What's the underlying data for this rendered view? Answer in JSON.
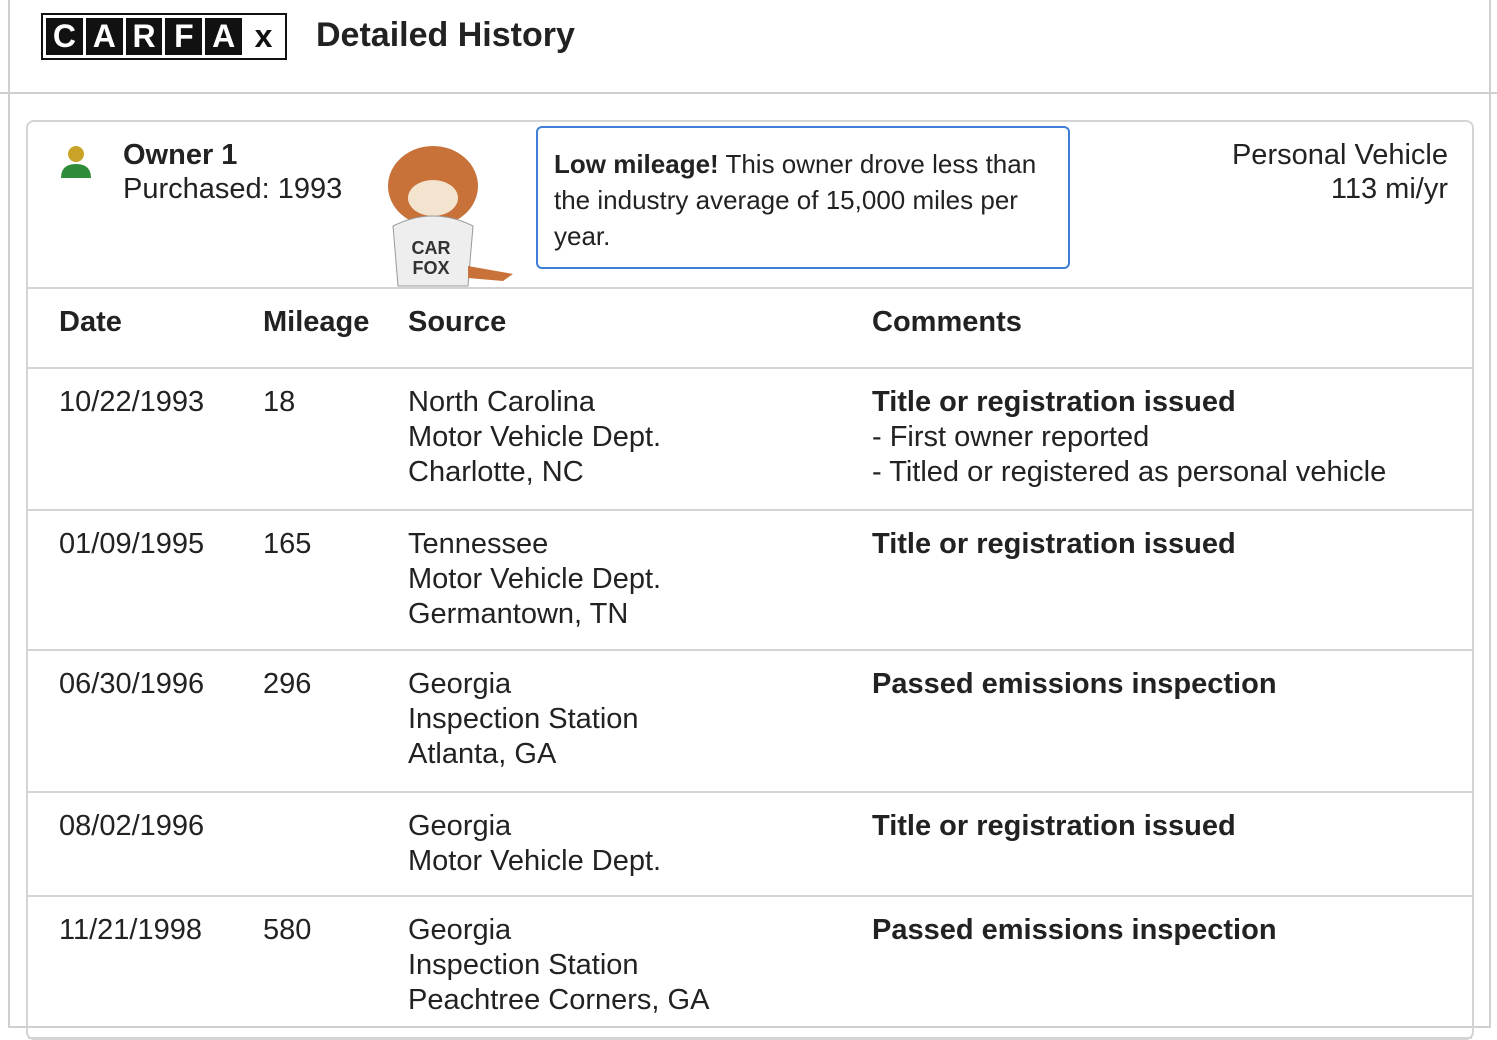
{
  "header": {
    "logo_letters": [
      "C",
      "A",
      "R",
      "F",
      "A",
      "x"
    ],
    "title": "Detailed History"
  },
  "owner": {
    "name": "Owner 1",
    "purchased": "Purchased: 1993",
    "mascot_shirt": [
      "CAR",
      "FOX"
    ],
    "callout": {
      "bold": "Low mileage!",
      "text": "This owner drove less than the industry average of 15,000 miles per year."
    },
    "usage": "Personal Vehicle",
    "mileage_rate": "113 mi/yr"
  },
  "table": {
    "columns": [
      "Date",
      "Mileage",
      "Source",
      "Comments"
    ],
    "rows": [
      {
        "date": "10/22/1993",
        "mileage": 18,
        "source": [
          "North Carolina",
          "Motor Vehicle Dept.",
          "Charlotte, NC"
        ],
        "comment": "Title or registration issued",
        "details": [
          "- First owner reported",
          "- Titled or registered as personal vehicle"
        ]
      },
      {
        "date": "01/09/1995",
        "mileage": 165,
        "source": [
          "Tennessee",
          "Motor Vehicle Dept.",
          "Germantown, TN"
        ],
        "comment": "Title or registration issued",
        "details": []
      },
      {
        "date": "06/30/1996",
        "mileage": 296,
        "source": [
          "Georgia",
          "Inspection Station",
          "Atlanta, GA"
        ],
        "comment": "Passed emissions inspection",
        "details": []
      },
      {
        "date": "08/02/1996",
        "mileage": null,
        "source": [
          "Georgia",
          "Motor Vehicle Dept."
        ],
        "comment": "Title or registration issued",
        "details": []
      },
      {
        "date": "11/21/1998",
        "mileage": 580,
        "source": [
          "Georgia",
          "Inspection Station",
          "Peachtree Corners, GA"
        ],
        "comment": "Passed emissions inspection",
        "details": []
      }
    ]
  }
}
